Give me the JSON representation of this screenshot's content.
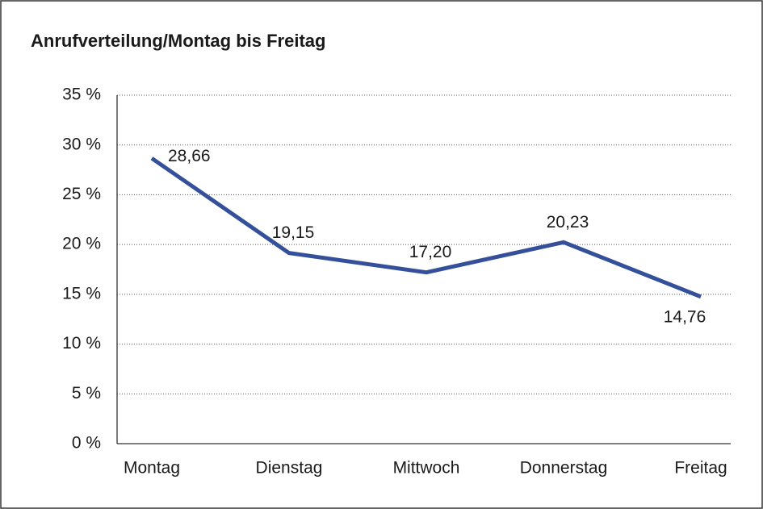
{
  "chart_data": {
    "type": "line",
    "title": "Anrufverteilung/Montag bis Freitag",
    "categories": [
      "Montag",
      "Dienstag",
      "Mittwoch",
      "Donnerstag",
      "Freitag"
    ],
    "values": [
      28.66,
      19.15,
      17.2,
      20.23,
      14.76
    ],
    "value_labels": [
      "28,66",
      "19,15",
      "17,20",
      "20,23",
      "14,76"
    ],
    "color": "#34509a",
    "ylim": [
      0,
      35
    ],
    "yticks": [
      {
        "value": 0,
        "label": "0 %"
      },
      {
        "value": 5,
        "label": "5 %"
      },
      {
        "value": 10,
        "label": "10 %"
      },
      {
        "value": 15,
        "label": "15 %"
      },
      {
        "value": 20,
        "label": "20 %"
      },
      {
        "value": 25,
        "label": "25 %"
      },
      {
        "value": 30,
        "label": "30 %"
      },
      {
        "value": 35,
        "label": "35 %"
      }
    ],
    "grid": true
  }
}
